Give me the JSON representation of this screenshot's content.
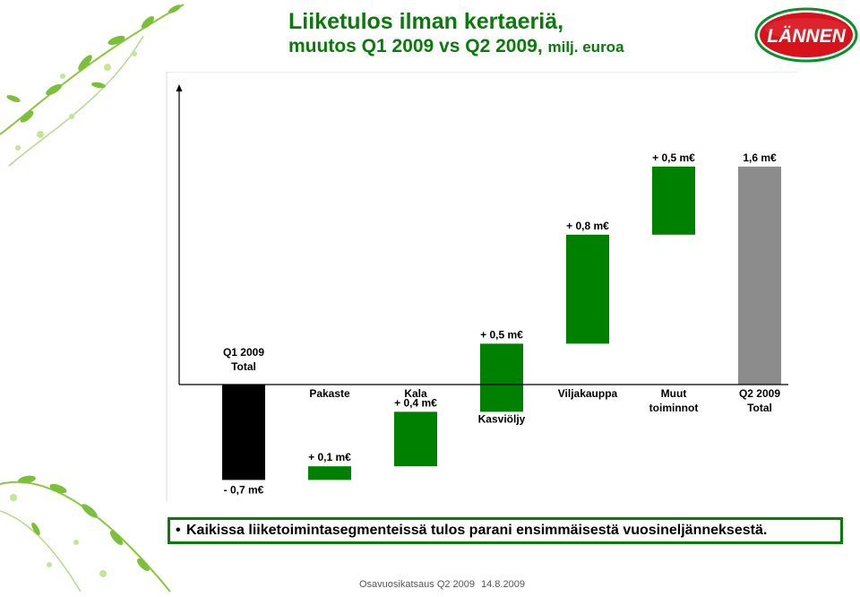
{
  "header": {
    "title_line1": "Liiketulos ilman kertaeriä,",
    "title_line2": "muutos Q1 2009 vs Q2 2009,",
    "title_unit": "milj. euroa"
  },
  "logo": {
    "text": "LÄNNEN",
    "color": "#d7121a",
    "ring_color": "#0a8f2a"
  },
  "colors": {
    "total_start": "#000000",
    "increase": "#008000",
    "total_end": "#8c8c8c",
    "title": "#0a7a0a"
  },
  "chart_data": {
    "type": "bar",
    "subtype": "waterfall",
    "title": "Liiketulos ilman kertaeriä, muutos Q1 2009 vs Q2 2009, milj. euroa",
    "categories": [
      [
        "Q1 2009",
        "Total"
      ],
      [
        "Pakaste"
      ],
      [
        "Kala"
      ],
      [
        "Kasviöljy"
      ],
      [
        "Viljakauppa"
      ],
      [
        "Muut",
        "toiminnot"
      ],
      [
        "Q2 2009",
        "Total"
      ]
    ],
    "steps": [
      {
        "kind": "total",
        "start": 0,
        "end": -0.7,
        "label": "- 0,7 m€"
      },
      {
        "kind": "increase",
        "start": -0.7,
        "end": -0.6,
        "label": "+ 0,1 m€"
      },
      {
        "kind": "increase",
        "start": -0.6,
        "end": -0.2,
        "label": "+ 0,4 m€"
      },
      {
        "kind": "increase",
        "start": -0.2,
        "end": 0.3,
        "label": "+ 0,5 m€"
      },
      {
        "kind": "increase",
        "start": 0.3,
        "end": 1.1,
        "label": "+ 0,8 m€"
      },
      {
        "kind": "increase",
        "start": 1.1,
        "end": 1.6,
        "label": "+ 0,5 m€"
      },
      {
        "kind": "total",
        "start": 0,
        "end": 1.6,
        "label": "1,6 m€"
      }
    ],
    "ylim": [
      -0.72,
      2.2
    ],
    "grid": false,
    "legend": "none"
  },
  "callout": {
    "bullet": "•",
    "text": "Kaikissa liiketoimintasegmenteissä tulos parani ensimmäisestä vuosineljänneksestä."
  },
  "footer": {
    "left": "Osavuosikatsaus Q2 2009",
    "right": "14.8.2009"
  }
}
